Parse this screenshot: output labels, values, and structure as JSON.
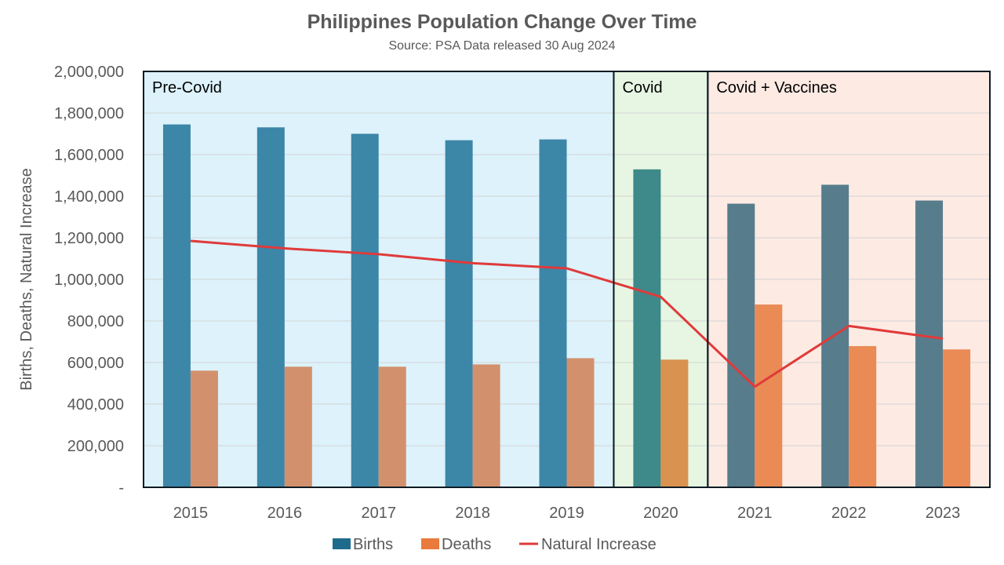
{
  "chart_data": {
    "type": "bar",
    "title": "Philippines Population Change Over Time",
    "subtitle": "Source: PSA Data released 30 Aug 2024",
    "ylabel": "Births, Deaths, Natural Increase",
    "xlabel": "",
    "ylim": [
      0,
      2000000
    ],
    "yticks": [
      {
        "value": 0,
        "label": "-"
      },
      {
        "value": 200000,
        "label": "200,000"
      },
      {
        "value": 400000,
        "label": "400,000"
      },
      {
        "value": 600000,
        "label": "600,000"
      },
      {
        "value": 800000,
        "label": "800,000"
      },
      {
        "value": 1000000,
        "label": "1,000,000"
      },
      {
        "value": 1200000,
        "label": "1,200,000"
      },
      {
        "value": 1400000,
        "label": "1,400,000"
      },
      {
        "value": 1600000,
        "label": "1,600,000"
      },
      {
        "value": 1800000,
        "label": "1,800,000"
      },
      {
        "value": 2000000,
        "label": "2,000,000"
      }
    ],
    "grid": true,
    "legend_position": "bottom",
    "categories": [
      "2015",
      "2016",
      "2017",
      "2018",
      "2019",
      "2020",
      "2021",
      "2022",
      "2023"
    ],
    "series": [
      {
        "name": "Births",
        "kind": "bar",
        "color": "#1F6B8E",
        "values": [
          1745000,
          1731000,
          1700000,
          1669000,
          1673000,
          1529000,
          1364000,
          1455000,
          1379000
        ]
      },
      {
        "name": "Deaths",
        "kind": "bar",
        "color": "#E97B3C",
        "values": [
          561000,
          580000,
          580000,
          591000,
          621000,
          614000,
          879000,
          679000,
          663000
        ]
      },
      {
        "name": "Natural Increase",
        "kind": "line",
        "color": "#E03A3A",
        "values": [
          1185000,
          1149000,
          1121000,
          1078000,
          1053000,
          916000,
          484000,
          776000,
          715000
        ]
      }
    ],
    "regions": [
      {
        "label": "Pre-Covid",
        "start": 0,
        "end": 4,
        "fill": "#DDF2FB",
        "bar_births": "#3C86A8",
        "bar_deaths": "#D2916C"
      },
      {
        "label": "Covid",
        "start": 5,
        "end": 5,
        "fill": "#E6F6E2",
        "bar_births": "#3E898A",
        "bar_deaths": "#D9924F"
      },
      {
        "label": "Covid + Vaccines",
        "start": 6,
        "end": 8,
        "fill": "#FCEAE3",
        "bar_births": "#577D8C",
        "bar_deaths": "#EA8A55"
      }
    ]
  }
}
